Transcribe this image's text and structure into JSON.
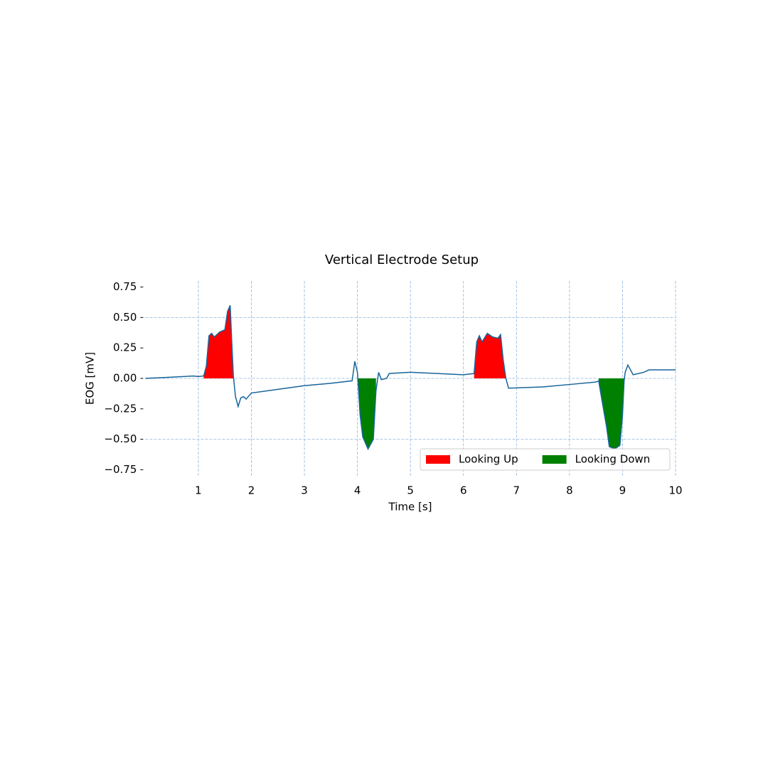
{
  "chart_data": {
    "type": "line",
    "title": "Vertical Electrode Setup",
    "x_label": "Time [s]",
    "y_label": "EOG [mV]",
    "xlim": [
      0,
      10
    ],
    "ylim": [
      -0.8,
      0.8
    ],
    "xticks": [
      1,
      2,
      3,
      4,
      5,
      6,
      7,
      8,
      9,
      10
    ],
    "yticks": [
      {
        "value": -0.75,
        "label": "−0.75"
      },
      {
        "value": -0.5,
        "label": "−0.50"
      },
      {
        "value": -0.25,
        "label": "−0.25"
      },
      {
        "value": 0,
        "label": "0.00"
      },
      {
        "value": 0.25,
        "label": "0.25"
      },
      {
        "value": 0.5,
        "label": "0.50"
      },
      {
        "value": 0.75,
        "label": "0.75"
      }
    ],
    "ygrid": [
      -0.5,
      0,
      0.5
    ],
    "grid": true,
    "legend": "lower right",
    "x": [
      0,
      0.5,
      0.9,
      1.0,
      1.1,
      1.15,
      1.2,
      1.25,
      1.3,
      1.4,
      1.5,
      1.55,
      1.6,
      1.63,
      1.66,
      1.7,
      1.75,
      1.8,
      1.85,
      1.9,
      2.0,
      2.5,
      3.0,
      3.5,
      3.9,
      3.95,
      4.0,
      4.05,
      4.1,
      4.2,
      4.3,
      4.35,
      4.4,
      4.45,
      4.55,
      4.6,
      5.0,
      5.5,
      6.0,
      6.2,
      6.25,
      6.3,
      6.35,
      6.45,
      6.55,
      6.65,
      6.7,
      6.75,
      6.8,
      6.85,
      7.5,
      8.0,
      8.5,
      8.55,
      8.6,
      8.7,
      8.75,
      8.85,
      8.95,
      9.0,
      9.03,
      9.05,
      9.1,
      9.2,
      9.4,
      9.5,
      10
    ],
    "series": [
      {
        "color": "#17659b",
        "values": [
          0,
          0.01,
          0.02,
          0.015,
          0.02,
          0.1,
          0.35,
          0.37,
          0.34,
          0.38,
          0.4,
          0.55,
          0.6,
          0.3,
          0.02,
          -0.15,
          -0.23,
          -0.16,
          -0.15,
          -0.17,
          -0.12,
          -0.09,
          -0.06,
          -0.04,
          -0.02,
          0.14,
          0.05,
          -0.3,
          -0.48,
          -0.58,
          -0.5,
          -0.1,
          0.05,
          -0.01,
          0.0,
          0.04,
          0.05,
          0.04,
          0.03,
          0.04,
          0.3,
          0.35,
          0.3,
          0.37,
          0.34,
          0.33,
          0.36,
          0.15,
          0.0,
          -0.08,
          -0.07,
          -0.05,
          -0.03,
          -0.02,
          -0.15,
          -0.4,
          -0.56,
          -0.58,
          -0.55,
          -0.3,
          -0.02,
          0.05,
          0.11,
          0.03,
          0.05,
          0.07,
          0.07
        ]
      }
    ],
    "fills": [
      {
        "name": "Looking Up",
        "color": "#ff0000",
        "x_ranges": [
          [
            1.05,
            1.66
          ],
          [
            6.2,
            6.8
          ]
        ]
      },
      {
        "name": "Looking Down",
        "color": "#008000",
        "x_ranges": [
          [
            4.0,
            4.38
          ],
          [
            8.55,
            9.03
          ]
        ]
      }
    ]
  }
}
